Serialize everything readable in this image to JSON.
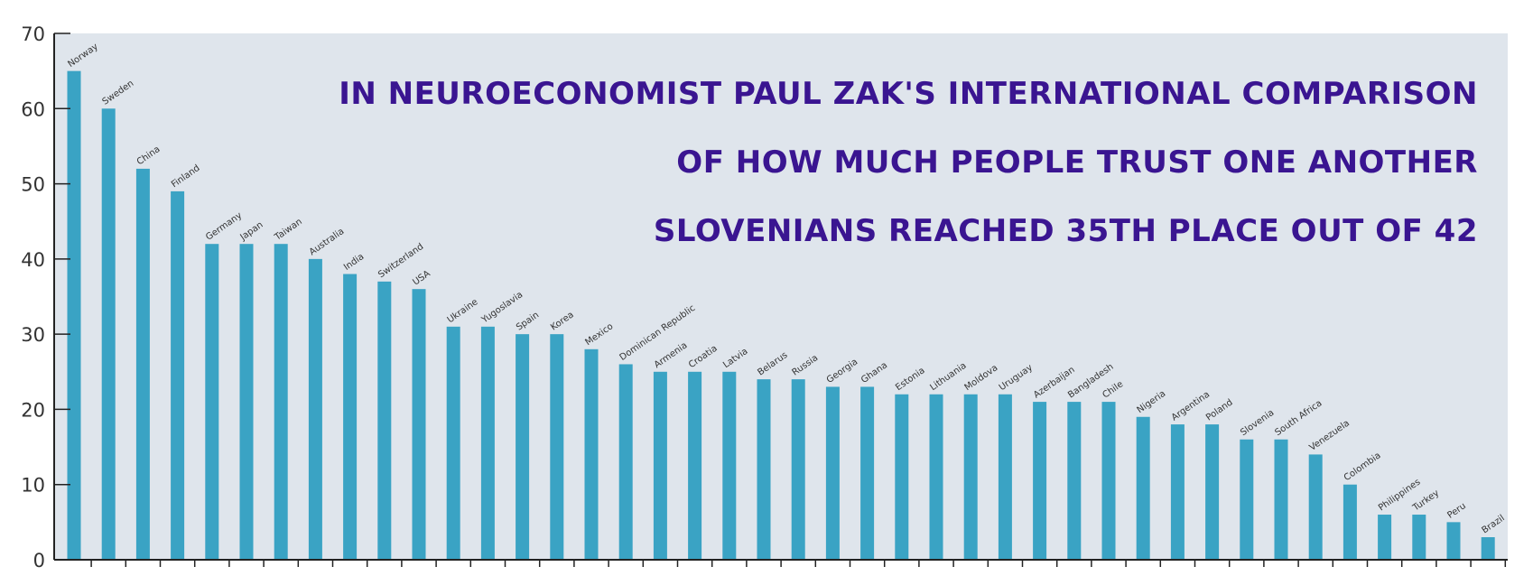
{
  "chart_data": {
    "type": "bar",
    "categories": [
      "Norway",
      "Sweden",
      "China",
      "Finland",
      "Germany",
      "Japan",
      "Taiwan",
      "Australia",
      "India",
      "Switzerland",
      "USA",
      "Ukraine",
      "Yugoslavia",
      "Spain",
      "Korea",
      "Mexico",
      "Dominican Republic",
      "Armenia",
      "Croatia",
      "Latvia",
      "Belarus",
      "Russia",
      "Georgia",
      "Ghana",
      "Estonia",
      "Lithuania",
      "Moldova",
      "Uruguay",
      "Azerbaijan",
      "Bangladesh",
      "Chile",
      "Nigeria",
      "Argentina",
      "Poland",
      "Slovenia",
      "South Africa",
      "Venezuela",
      "Colombia",
      "Philippines",
      "Turkey",
      "Peru",
      "Brazil"
    ],
    "values": [
      65,
      60,
      52,
      49,
      42,
      42,
      42,
      40,
      38,
      37,
      36,
      31,
      31,
      30,
      30,
      28,
      26,
      25,
      25,
      25,
      24,
      24,
      23,
      23,
      22,
      22,
      22,
      22,
      21,
      21,
      21,
      19,
      18,
      18,
      16,
      16,
      14,
      10,
      6,
      6,
      5,
      3
    ],
    "ylim": [
      0,
      70
    ],
    "yticks": [
      0,
      10,
      20,
      30,
      40,
      50,
      60,
      70
    ],
    "grid": false,
    "colors": {
      "bar": "#3aa3c4",
      "plot_bg": "#dfe5ec",
      "axis": "#222222",
      "headline": "#3a1591"
    }
  },
  "annotation": {
    "lines": [
      "IN NEUROECONOMIST PAUL ZAK'S INTERNATIONAL COMPARISON",
      "OF HOW MUCH PEOPLE TRUST ONE ANOTHER",
      "SLOVENIANS REACHED 35TH PLACE OUT OF 42"
    ]
  }
}
